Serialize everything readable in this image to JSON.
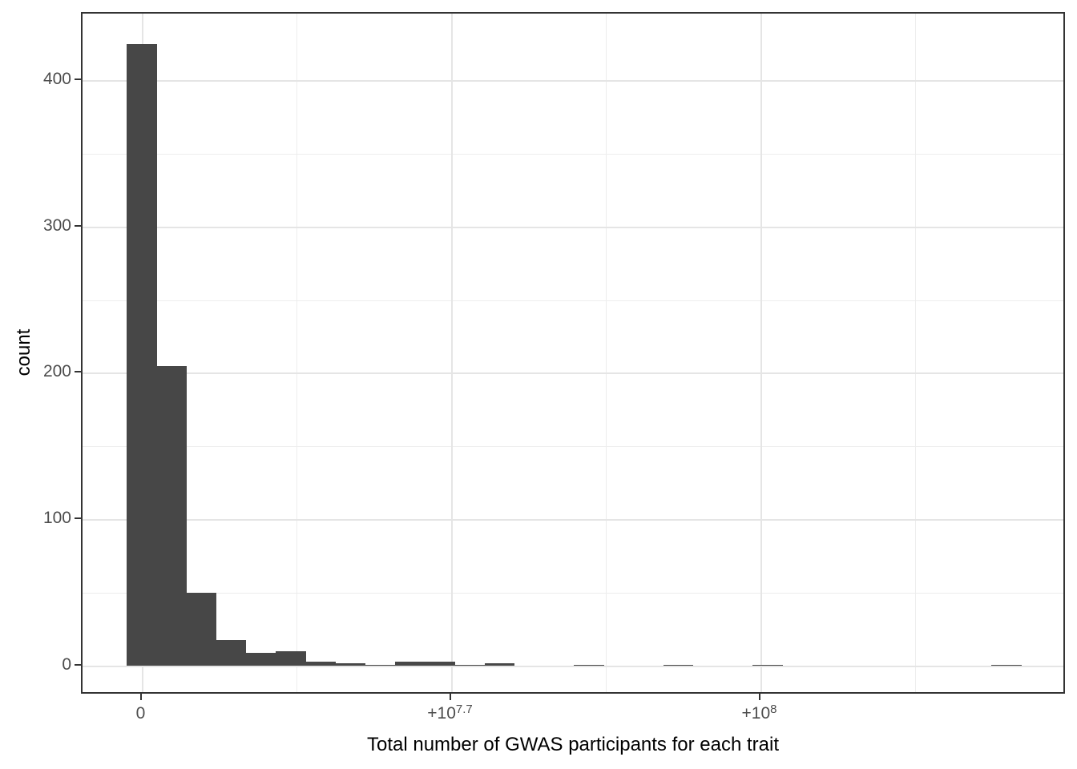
{
  "chart_data": {
    "type": "bar",
    "subtype": "histogram",
    "title": "",
    "xlabel": "Total number of GWAS participants for each trait",
    "ylabel": "count",
    "x_tick_labels": [
      {
        "base": "0",
        "sup": ""
      },
      {
        "base": "+10",
        "sup": "7.7"
      },
      {
        "base": "+10",
        "sup": "8"
      }
    ],
    "y_tick_labels": [
      "0",
      "100",
      "200",
      "300",
      "400"
    ],
    "y_ticks": [
      0,
      100,
      200,
      300,
      400
    ],
    "y_minor_ticks": [
      50,
      150,
      250,
      350
    ],
    "ylim": [
      0,
      445
    ],
    "grid": true,
    "legend": false,
    "n_bins": 30,
    "bin_counts": [
      425,
      205,
      50,
      18,
      9,
      10,
      3,
      2,
      1,
      3,
      3,
      1,
      2,
      0,
      0,
      1,
      0,
      0,
      1,
      0,
      0,
      1,
      0,
      0,
      0,
      0,
      0,
      0,
      0,
      1
    ],
    "colors": {
      "bar": "#474747",
      "grid_major": "#E5E5E5",
      "grid_minor": "#EDEDED",
      "axis_border": "#333333",
      "tick_mark": "#333333",
      "tick_label": "#4D4D4D",
      "axis_title": "#000000",
      "panel_background": "#FFFFFF"
    }
  }
}
